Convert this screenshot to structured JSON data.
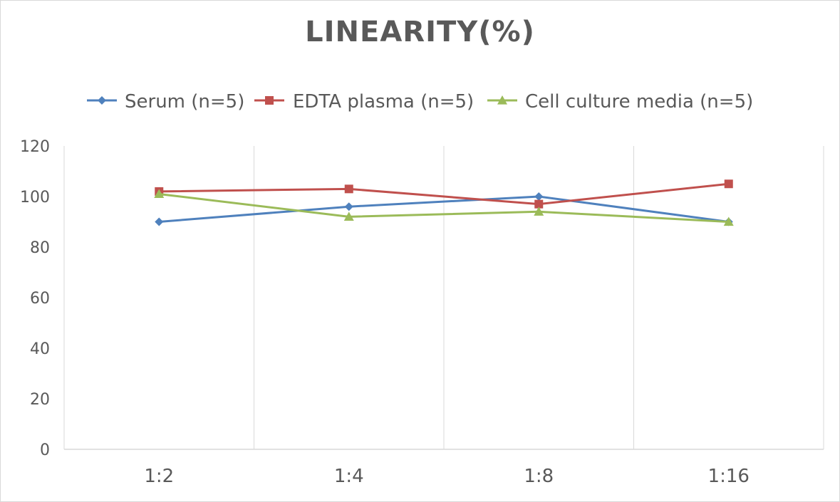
{
  "chart_data": {
    "type": "line",
    "title": "LINEARITY(%)",
    "categories": [
      "1:2",
      "1:4",
      "1:8",
      "1:16"
    ],
    "ylim": [
      0,
      120
    ],
    "yticks": [
      0,
      20,
      40,
      60,
      80,
      100,
      120
    ],
    "grid": "vertical",
    "legend_position": "top",
    "series": [
      {
        "name": "Serum (n=5)",
        "values": [
          90,
          96,
          100,
          90
        ],
        "color": "#4f81bd",
        "marker": "diamond"
      },
      {
        "name": "EDTA plasma (n=5)",
        "values": [
          102,
          103,
          97,
          105
        ],
        "color": "#c0504d",
        "marker": "square"
      },
      {
        "name": "Cell culture media (n=5)",
        "values": [
          101,
          92,
          94,
          90
        ],
        "color": "#9bbb59",
        "marker": "triangle"
      }
    ]
  }
}
